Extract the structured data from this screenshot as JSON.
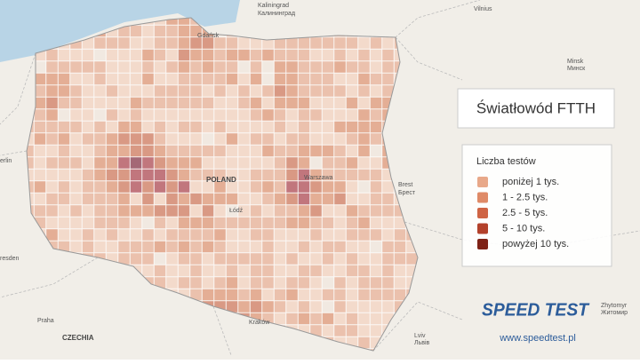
{
  "title": "Światłowód FTTH",
  "legend": {
    "title": "Liczba testów",
    "items": [
      {
        "label": "poniżej 1 tys.",
        "color": "#e8a889"
      },
      {
        "label": "1 - 2.5 tys.",
        "color": "#df8a67"
      },
      {
        "label": "2.5 - 5 tys.",
        "color": "#cf6444"
      },
      {
        "label": "5 - 10 tys.",
        "color": "#b3412b"
      },
      {
        "label": "powyżej 10 tys.",
        "color": "#7e2216"
      }
    ]
  },
  "places": {
    "gdansk": "Gdańsk",
    "kaliningrad": "Kaliningrad",
    "kaliningrad_ru": "Калининград",
    "vilnius": "Vilnius",
    "minsk": "Minsk",
    "minsk_ru": "Минск",
    "berlin": "erlin",
    "poland": "POLAND",
    "warszawa": "Warszawa",
    "lodz": "Łódź",
    "brest": "Brest",
    "brest_ru": "Брест",
    "dresden": "resden",
    "praha": "Praha",
    "czechia": "CZECHIA",
    "krakow": "Kraków",
    "lviv": "Lviv",
    "lviv_uk": "Львів",
    "zhytomyr": "Zhytomyr",
    "zhytomyr_uk": "Житомир"
  },
  "logo": "SPEED TEST",
  "url": "www.speedtest.pl"
}
